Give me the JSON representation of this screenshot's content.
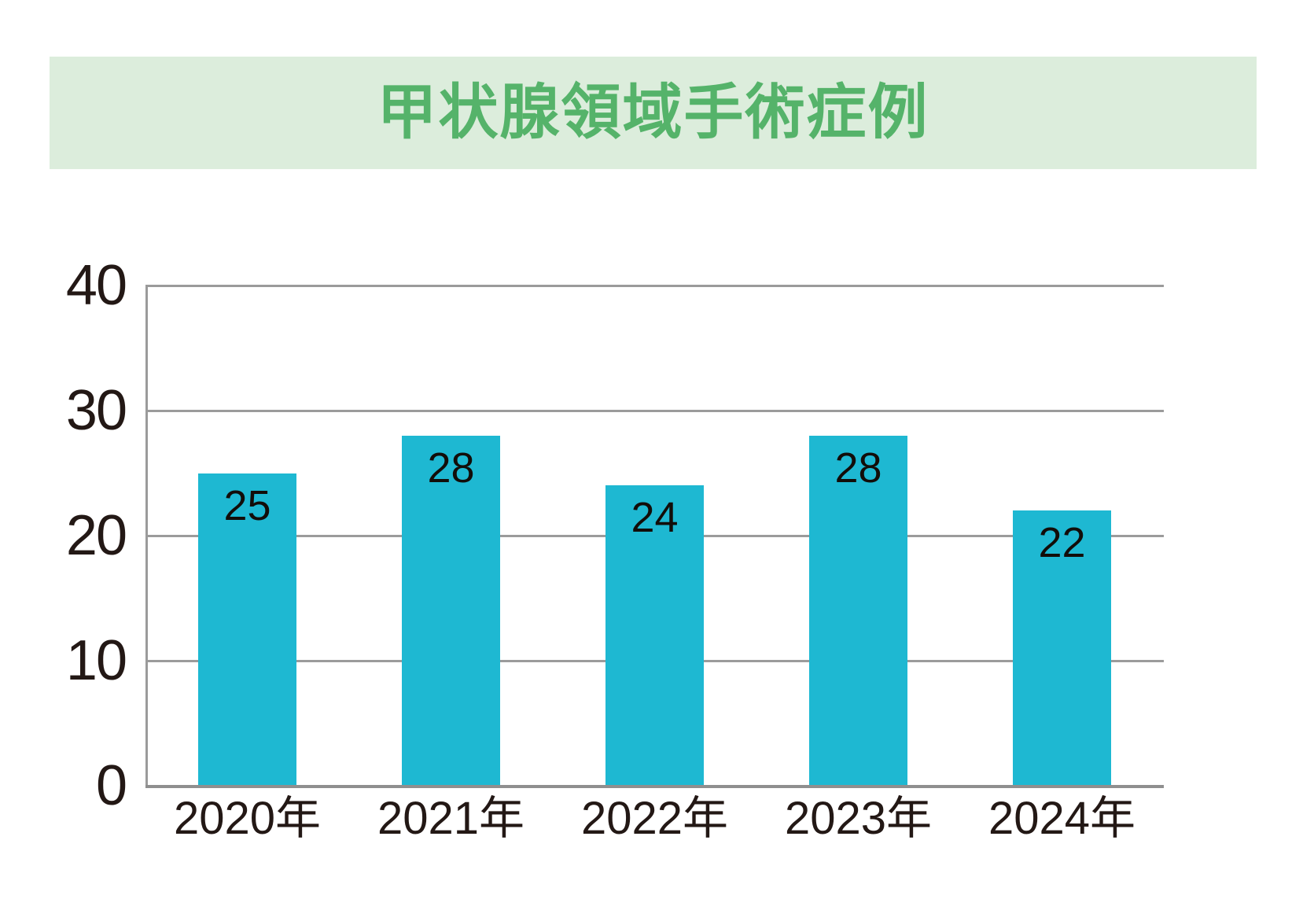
{
  "title": {
    "text": "甲状腺領域手術症例"
  },
  "colors": {
    "bar": "#1eb8d2",
    "title_green": "#55b36a",
    "banner_bg": "#dceddc",
    "grid": "#9b9b9b",
    "text": "#231815"
  },
  "chart_data": {
    "type": "bar",
    "title": "甲状腺領域手術症例",
    "categories": [
      "2020年",
      "2021年",
      "2022年",
      "2023年",
      "2024年"
    ],
    "values": [
      25,
      28,
      24,
      28,
      22
    ],
    "xlabel": "",
    "ylabel": "",
    "ylim": [
      0,
      40
    ],
    "yticks": [
      0,
      10,
      20,
      30,
      40
    ],
    "grid": true,
    "legend": "none",
    "bar_color": "#1eb8d2",
    "value_label_position": "inside-top"
  }
}
